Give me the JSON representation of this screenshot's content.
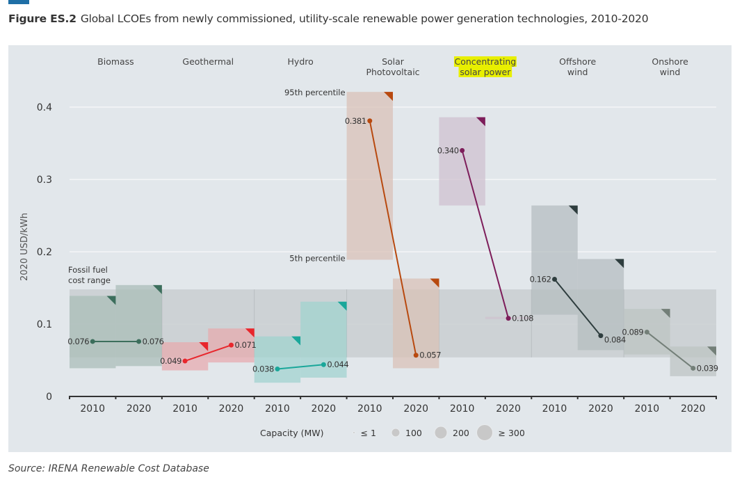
{
  "figure": {
    "title_prefix": "Figure ES.2",
    "title": "Global LCOEs from newly commissioned, utility-scale renewable power generation technologies, 2010-2020",
    "source": "Source: IRENA Renewable Cost Database"
  },
  "chart_data": {
    "type": "range-bar-with-line",
    "title": "Global LCOEs from newly commissioned, utility-scale renewable power generation technologies, 2010-2020",
    "ylabel": "2020 USD/kWh",
    "xlabel": "",
    "ylim": [
      0,
      0.42
    ],
    "yticks": [
      0,
      0.1,
      0.2,
      0.3,
      0.4
    ],
    "ytick_labels": [
      "0",
      "0.1",
      "0.2",
      "0.3",
      "0.4"
    ],
    "grid": true,
    "fossil_fuel_range": {
      "label_line1": "Fossil fuel",
      "label_line2": "cost range",
      "low": 0.054,
      "high": 0.148,
      "color": "#c9ced1"
    },
    "annotations": {
      "p95": "95th percentile",
      "p5": "5th percentile"
    },
    "technologies": [
      {
        "name": "Biomass",
        "label_lines": [
          "Biomass"
        ],
        "color": "#3c6e5c",
        "fill": "#a9bdb7",
        "highlight": false,
        "points": [
          {
            "year": "2010",
            "value": 0.076,
            "label": "0.076",
            "p5": 0.039,
            "p95": 0.139
          },
          {
            "year": "2020",
            "value": 0.076,
            "label": "0.076",
            "p5": 0.042,
            "p95": 0.154
          }
        ]
      },
      {
        "name": "Geothermal",
        "label_lines": [
          "Geothermal"
        ],
        "color": "#e8262c",
        "fill": "#e7a9ad",
        "highlight": false,
        "points": [
          {
            "year": "2010",
            "value": 0.049,
            "label": "0.049",
            "p5": 0.036,
            "p95": 0.075
          },
          {
            "year": "2020",
            "value": 0.071,
            "label": "0.071",
            "p5": 0.047,
            "p95": 0.094
          }
        ]
      },
      {
        "name": "Hydro",
        "label_lines": [
          "Hydro"
        ],
        "color": "#1aa79a",
        "fill": "#9fd2cf",
        "highlight": false,
        "points": [
          {
            "year": "2010",
            "value": 0.038,
            "label": "0.038",
            "p5": 0.019,
            "p95": 0.083
          },
          {
            "year": "2020",
            "value": 0.044,
            "label": "0.044",
            "p5": 0.026,
            "p95": 0.131
          }
        ]
      },
      {
        "name": "Solar Photovoltaic",
        "label_lines": [
          "Solar",
          "Photovoltaic"
        ],
        "color": "#b8490f",
        "fill": "#d9c1b5",
        "highlight": false,
        "points": [
          {
            "year": "2010",
            "value": 0.381,
            "label": "0.381",
            "p5": 0.189,
            "p95": 0.421
          },
          {
            "year": "2020",
            "value": 0.057,
            "label": "0.057",
            "p5": 0.039,
            "p95": 0.163
          }
        ]
      },
      {
        "name": "Concentrating solar power",
        "label_lines": [
          "Concentrating",
          "solar power"
        ],
        "color": "#7d1d5a",
        "fill": "#cfc0cf",
        "highlight": true,
        "highlight_color": "#e8ef00",
        "points": [
          {
            "year": "2010",
            "value": 0.34,
            "label": "0.340",
            "p5": 0.264,
            "p95": 0.386
          },
          {
            "year": "2020",
            "value": 0.108,
            "label": "0.108",
            "p5": 0.107,
            "p95": 0.11
          }
        ]
      },
      {
        "name": "Offshore wind",
        "label_lines": [
          "Offshore",
          "wind"
        ],
        "color": "#2e3d3e",
        "fill": "#b4bcbf",
        "highlight": false,
        "points": [
          {
            "year": "2010",
            "value": 0.162,
            "label": "0.162",
            "p5": 0.113,
            "p95": 0.264
          },
          {
            "year": "2020",
            "value": 0.084,
            "label": "0.084",
            "p5": 0.064,
            "p95": 0.19
          }
        ]
      },
      {
        "name": "Onshore wind",
        "label_lines": [
          "Onshore",
          "wind"
        ],
        "color": "#737f78",
        "fill": "#bcc4c2",
        "highlight": false,
        "points": [
          {
            "year": "2010",
            "value": 0.089,
            "label": "0.089",
            "p5": 0.058,
            "p95": 0.121
          },
          {
            "year": "2020",
            "value": 0.039,
            "label": "0.039",
            "p5": 0.028,
            "p95": 0.069
          }
        ]
      }
    ],
    "legend": {
      "title": "Capacity (MW)",
      "entries": [
        "≤ 1",
        "100",
        "200",
        "≥ 300"
      ],
      "color": "#c8c8c8",
      "placement": "bottom-center"
    }
  }
}
